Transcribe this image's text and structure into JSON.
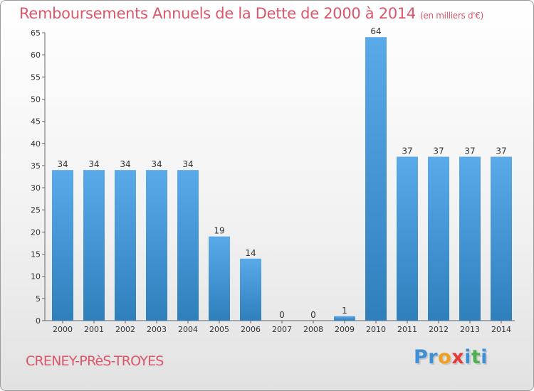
{
  "title": "Remboursements Annuels de la Dette de 2000 à 2014",
  "subtitle": "(en milliers d'€)",
  "commune": "CRENEY-PRèS-TROYES",
  "logo": {
    "letters": [
      "P",
      "r",
      "o",
      "x",
      "i",
      "t",
      "i"
    ],
    "colors": [
      "#3d8fd6",
      "#3d8fd6",
      "#f0a020",
      "#e33c3c",
      "#3d8fd6",
      "#4caf50",
      "#3d8fd6"
    ]
  },
  "colors": {
    "bar_light": "#5aaaea",
    "bar_dark": "#2f7fbd",
    "title": "#d9576a"
  },
  "chart_data": {
    "type": "bar",
    "categories": [
      "2000",
      "2001",
      "2002",
      "2003",
      "2004",
      "2005",
      "2006",
      "2007",
      "2008",
      "2009",
      "2010",
      "2011",
      "2012",
      "2013",
      "2014"
    ],
    "values": [
      34,
      34,
      34,
      34,
      34,
      19,
      14,
      0,
      0,
      1,
      64,
      37,
      37,
      37,
      37
    ],
    "ylim": [
      0,
      65
    ],
    "yticks": [
      0,
      5,
      10,
      15,
      20,
      25,
      30,
      35,
      40,
      45,
      50,
      55,
      60,
      65
    ],
    "grid": false,
    "legend": "none",
    "value_labels": true
  }
}
